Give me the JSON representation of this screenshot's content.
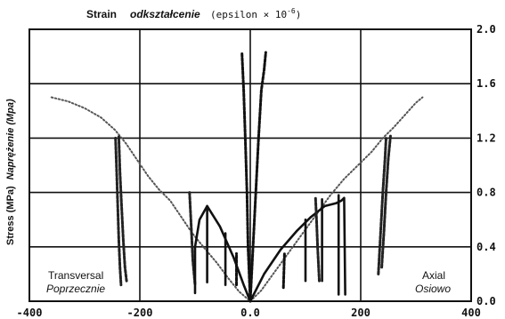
{
  "chart_data": {
    "type": "line",
    "title": {
      "en": "Strain",
      "pl": "odkształcenie",
      "unit": "(epsilon × 10",
      "exp": "-6",
      "close": ")"
    },
    "ylabel": {
      "en": "Stress (MPa)",
      "pl": "Naprężenie (Mpa)"
    },
    "xlim": [
      -400,
      400
    ],
    "ylim": [
      0,
      2.0
    ],
    "x_ticks": [
      -400,
      -200,
      0,
      200,
      400
    ],
    "x_tick_labels": [
      "-400",
      "-200",
      "0.0",
      "200",
      "400"
    ],
    "y_ticks": [
      0,
      0.4,
      0.8,
      1.2,
      1.6,
      2.0
    ],
    "y_tick_labels": [
      "0.0",
      "0.4",
      "0.8",
      "1.2",
      "1.6",
      "2.0"
    ],
    "grid": {
      "horizontal": true,
      "vertical_at": [
        -200,
        0,
        200
      ]
    },
    "annotations": {
      "left_en": "Transversal",
      "left_pl": "Poprzecznie",
      "right_en": "Axial",
      "right_pl": "Osiowo"
    },
    "series": [
      {
        "style": "dotted",
        "color": "#555555",
        "points": [
          [
            -360,
            1.5
          ],
          [
            -330,
            1.47
          ],
          [
            -300,
            1.42
          ],
          [
            -270,
            1.35
          ],
          [
            -245,
            1.26
          ],
          [
            -225,
            1.16
          ],
          [
            -205,
            1.04
          ],
          [
            -185,
            0.92
          ],
          [
            -165,
            0.82
          ],
          [
            -145,
            0.74
          ],
          [
            -125,
            0.62
          ],
          [
            -105,
            0.5
          ],
          [
            -85,
            0.4
          ],
          [
            -60,
            0.28
          ],
          [
            -40,
            0.17
          ],
          [
            -20,
            0.07
          ],
          [
            0,
            0
          ]
        ]
      },
      {
        "style": "dotted",
        "color": "#555555",
        "points": [
          [
            0,
            0
          ],
          [
            20,
            0.08
          ],
          [
            45,
            0.22
          ],
          [
            70,
            0.36
          ],
          [
            95,
            0.5
          ],
          [
            120,
            0.64
          ],
          [
            145,
            0.78
          ],
          [
            170,
            0.9
          ],
          [
            195,
            1.0
          ],
          [
            220,
            1.1
          ],
          [
            240,
            1.2
          ],
          [
            260,
            1.28
          ],
          [
            280,
            1.37
          ],
          [
            300,
            1.46
          ],
          [
            312,
            1.5
          ]
        ]
      },
      {
        "style": "dashed",
        "color": "#222222",
        "points": [
          [
            -244,
            1.2
          ],
          [
            -242,
            0.95
          ],
          [
            -240,
            0.7
          ],
          [
            -238,
            0.45
          ],
          [
            -236,
            0.25
          ],
          [
            -234,
            0.12
          ]
        ]
      },
      {
        "style": "dashed",
        "color": "#222222",
        "points": [
          [
            -238,
            1.21
          ],
          [
            -236,
            0.95
          ],
          [
            -233,
            0.7
          ],
          [
            -230,
            0.45
          ],
          [
            -227,
            0.25
          ],
          [
            -224,
            0.15
          ]
        ]
      },
      {
        "style": "dashed",
        "color": "#222222",
        "points": [
          [
            -110,
            0.8
          ],
          [
            -107,
            0.55
          ],
          [
            -104,
            0.3
          ],
          [
            -100,
            0.12
          ]
        ]
      },
      {
        "style": "solid",
        "color": "#111111",
        "points": [
          [
            -100,
            0.06
          ],
          [
            -100,
            0.4
          ],
          [
            -92,
            0.6
          ],
          [
            -78,
            0.7
          ],
          [
            -55,
            0.55
          ],
          [
            -30,
            0.32
          ],
          [
            -12,
            0.12
          ],
          [
            0,
            0
          ]
        ]
      },
      {
        "style": "solid",
        "color": "#111111",
        "points": [
          [
            -78,
            0.14
          ],
          [
            -78,
            0.7
          ]
        ]
      },
      {
        "style": "solid",
        "color": "#111111",
        "points": [
          [
            -45,
            0.12
          ],
          [
            -45,
            0.5
          ]
        ]
      },
      {
        "style": "dashed",
        "color": "#111111",
        "points": [
          [
            -25,
            0.12
          ],
          [
            -25,
            0.35
          ]
        ]
      },
      {
        "style": "dashed",
        "color": "#111111",
        "points": [
          [
            -15,
            1.82
          ],
          [
            -12,
            1.55
          ],
          [
            -9,
            1.2
          ],
          [
            -6,
            0.8
          ],
          [
            -4,
            0.4
          ],
          [
            0,
            0
          ]
        ]
      },
      {
        "style": "dashed",
        "color": "#111111",
        "points": [
          [
            0,
            0
          ],
          [
            5,
            0.4
          ],
          [
            10,
            0.8
          ],
          [
            15,
            1.2
          ],
          [
            20,
            1.55
          ],
          [
            25,
            1.7
          ],
          [
            28,
            1.83
          ]
        ]
      },
      {
        "style": "dashed",
        "color": "#111111",
        "points": [
          [
            60,
            0.1
          ],
          [
            62,
            0.35
          ]
        ]
      },
      {
        "style": "solid",
        "color": "#111111",
        "points": [
          [
            0,
            0
          ],
          [
            25,
            0.2
          ],
          [
            55,
            0.38
          ],
          [
            85,
            0.52
          ],
          [
            110,
            0.62
          ],
          [
            135,
            0.7
          ],
          [
            155,
            0.72
          ],
          [
            165,
            0.74
          ],
          [
            170,
            0.76
          ],
          [
            172,
            0.05
          ]
        ]
      },
      {
        "style": "solid",
        "color": "#111111",
        "points": [
          [
            100,
            0.15
          ],
          [
            100,
            0.6
          ]
        ]
      },
      {
        "style": "solid",
        "color": "#111111",
        "points": [
          [
            130,
            0.15
          ],
          [
            130,
            0.75
          ]
        ]
      },
      {
        "style": "solid",
        "color": "#111111",
        "points": [
          [
            160,
            0.05
          ],
          [
            160,
            0.78
          ]
        ]
      },
      {
        "style": "dashed",
        "color": "#222222",
        "points": [
          [
            125,
            0.15
          ],
          [
            122,
            0.4
          ],
          [
            120,
            0.6
          ],
          [
            118,
            0.77
          ]
        ]
      },
      {
        "style": "dashed",
        "color": "#222222",
        "points": [
          [
            232,
            0.2
          ],
          [
            236,
            0.5
          ],
          [
            240,
            0.8
          ],
          [
            244,
            1.05
          ],
          [
            246,
            1.2
          ]
        ]
      },
      {
        "style": "dashed",
        "color": "#222222",
        "points": [
          [
            238,
            0.25
          ],
          [
            242,
            0.5
          ],
          [
            246,
            0.8
          ],
          [
            250,
            1.05
          ],
          [
            254,
            1.22
          ]
        ]
      }
    ]
  }
}
